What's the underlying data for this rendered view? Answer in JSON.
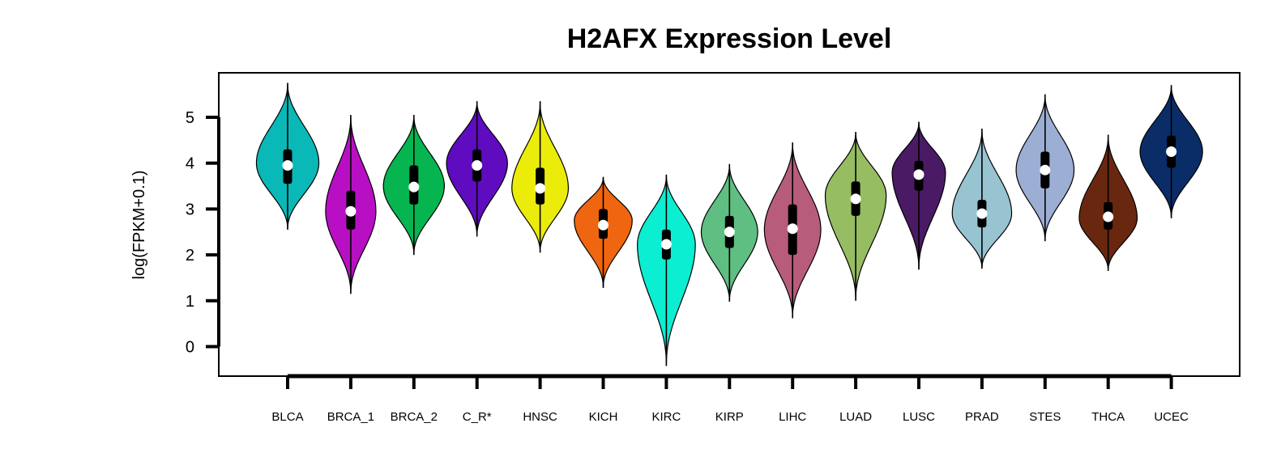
{
  "chart_data": {
    "type": "violin",
    "title": "H2AFX Expression Level",
    "ylabel": "log(FPKM+0.1)",
    "xlabel": "",
    "ylim": [
      -0.65,
      5.95
    ],
    "yticks": [
      0,
      1,
      2,
      3,
      4,
      5
    ],
    "grid": false,
    "legend": "none",
    "categories": [
      "BLCA",
      "BRCA_1",
      "BRCA_2",
      "C_R*",
      "HNSC",
      "KICH",
      "KIRC",
      "KIRP",
      "LIHC",
      "LUAD",
      "LUSC",
      "PRAD",
      "STES",
      "THCA",
      "UCEC"
    ],
    "series": [
      {
        "category": "BLCA",
        "color": "#0bb8b8",
        "min": 2.55,
        "max": 5.75,
        "q1": 3.55,
        "q3": 4.3,
        "median": 3.95,
        "peak": 4.0,
        "max_width": 0.82
      },
      {
        "category": "BRCA_1",
        "color": "#b80fc4",
        "min": 1.15,
        "max": 5.05,
        "q1": 2.55,
        "q3": 3.4,
        "median": 2.95,
        "peak": 2.95,
        "max_width": 0.66
      },
      {
        "category": "BRCA_2",
        "color": "#07b550",
        "min": 2.0,
        "max": 5.05,
        "q1": 3.1,
        "q3": 3.95,
        "median": 3.48,
        "peak": 3.5,
        "max_width": 0.8
      },
      {
        "category": "C_R*",
        "color": "#5f0bbf",
        "min": 2.4,
        "max": 5.35,
        "q1": 3.6,
        "q3": 4.3,
        "median": 3.95,
        "peak": 4.0,
        "max_width": 0.8
      },
      {
        "category": "HNSC",
        "color": "#ecec0b",
        "min": 2.05,
        "max": 5.35,
        "q1": 3.1,
        "q3": 3.9,
        "median": 3.45,
        "peak": 3.45,
        "max_width": 0.74
      },
      {
        "category": "KICH",
        "color": "#f0650f",
        "min": 1.28,
        "max": 3.7,
        "q1": 2.35,
        "q3": 3.0,
        "median": 2.65,
        "peak": 2.75,
        "max_width": 0.76
      },
      {
        "category": "KIRC",
        "color": "#0beed2",
        "min": -0.42,
        "max": 3.75,
        "q1": 1.9,
        "q3": 2.55,
        "median": 2.23,
        "peak": 2.23,
        "max_width": 0.76
      },
      {
        "category": "KIRP",
        "color": "#5fbe82",
        "min": 0.98,
        "max": 3.98,
        "q1": 2.15,
        "q3": 2.85,
        "median": 2.5,
        "peak": 2.5,
        "max_width": 0.74
      },
      {
        "category": "LIHC",
        "color": "#b85c7c",
        "min": 0.62,
        "max": 4.45,
        "q1": 2.0,
        "q3": 3.1,
        "median": 2.57,
        "peak": 2.55,
        "max_width": 0.74
      },
      {
        "category": "LUAD",
        "color": "#96bd62",
        "min": 1.0,
        "max": 4.68,
        "q1": 2.85,
        "q3": 3.6,
        "median": 3.22,
        "peak": 3.3,
        "max_width": 0.8
      },
      {
        "category": "LUSC",
        "color": "#4a1a64",
        "min": 1.68,
        "max": 4.9,
        "q1": 3.4,
        "q3": 4.05,
        "median": 3.75,
        "peak": 3.8,
        "max_width": 0.7
      },
      {
        "category": "PRAD",
        "color": "#98c4d2",
        "min": 1.7,
        "max": 4.75,
        "q1": 2.6,
        "q3": 3.2,
        "median": 2.9,
        "peak": 2.9,
        "max_width": 0.78
      },
      {
        "category": "STES",
        "color": "#9daed4",
        "min": 2.3,
        "max": 5.5,
        "q1": 3.45,
        "q3": 4.25,
        "median": 3.85,
        "peak": 3.85,
        "max_width": 0.76
      },
      {
        "category": "THCA",
        "color": "#6a2710",
        "min": 1.65,
        "max": 4.62,
        "q1": 2.55,
        "q3": 3.15,
        "median": 2.83,
        "peak": 2.8,
        "max_width": 0.76
      },
      {
        "category": "UCEC",
        "color": "#0a2d68",
        "min": 2.8,
        "max": 5.7,
        "q1": 3.9,
        "q3": 4.6,
        "median": 4.25,
        "peak": 4.25,
        "max_width": 0.82
      }
    ]
  }
}
